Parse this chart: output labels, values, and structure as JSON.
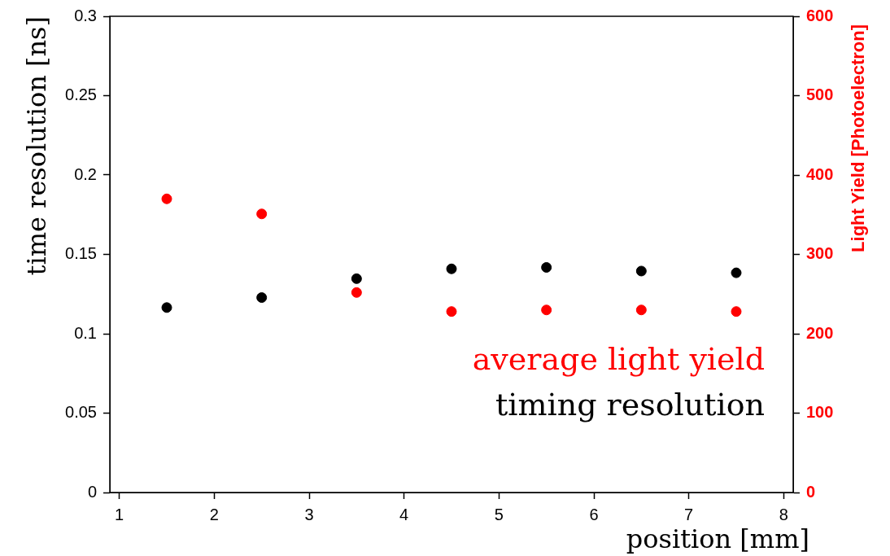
{
  "chart_data": {
    "type": "scatter",
    "xlabel": "position [mm]",
    "ylabel": "time resolution [ns]",
    "y2label": "Light Yield [Photoelectron]",
    "x": [
      1.5,
      2.5,
      3.5,
      4.5,
      5.5,
      6.5,
      7.5
    ],
    "series": [
      {
        "name": "timing resolution",
        "color": "#000000",
        "values": [
          0.1165,
          0.1228,
          0.1347,
          0.1409,
          0.1418,
          0.1395,
          0.1384
        ]
      },
      {
        "name": "average light yield",
        "color": "#ff0000",
        "axis": "y2",
        "values": [
          370,
          351,
          252,
          228,
          230,
          230,
          228
        ]
      }
    ],
    "xlim": [
      0.9,
      8.1
    ],
    "xticks": [
      1,
      2,
      3,
      4,
      5,
      6,
      7,
      8
    ],
    "ylim": [
      0,
      0.3
    ],
    "yticks": [
      0,
      0.05,
      0.1,
      0.15,
      0.2,
      0.25,
      0.3
    ],
    "y2lim": [
      0,
      600
    ],
    "y2ticks": [
      0,
      100,
      200,
      300,
      400,
      500,
      600
    ],
    "legend": "bottom right",
    "marker": "circle",
    "grid": false
  }
}
